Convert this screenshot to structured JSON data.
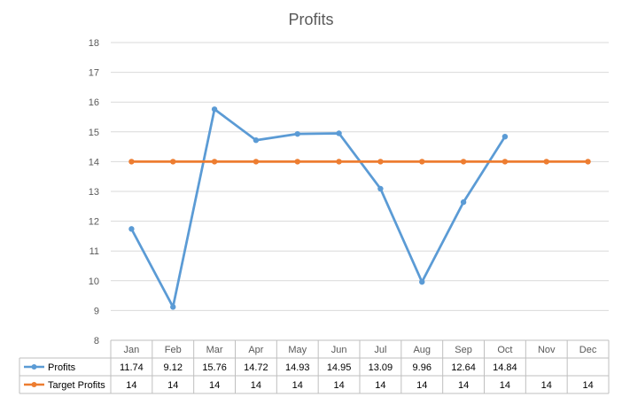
{
  "chart_data": {
    "type": "line",
    "title": "Profits",
    "categories": [
      "Jan",
      "Feb",
      "Mar",
      "Apr",
      "May",
      "Jun",
      "Jul",
      "Aug",
      "Sep",
      "Oct",
      "Nov",
      "Dec"
    ],
    "ylim": [
      8,
      18
    ],
    "yticks": [
      8,
      9,
      10,
      11,
      12,
      13,
      14,
      15,
      16,
      17,
      18
    ],
    "grid": true,
    "legend": "data-table",
    "series": [
      {
        "name": "Profits",
        "color": "#5B9BD5",
        "values": [
          11.74,
          9.12,
          15.76,
          14.72,
          14.93,
          14.95,
          13.09,
          9.96,
          12.64,
          14.84,
          null,
          null
        ],
        "labels": [
          "11.74",
          "9.12",
          "15.76",
          "14.72",
          "14.93",
          "14.95",
          "13.09",
          "9.96",
          "12.64",
          "14.84",
          "",
          ""
        ]
      },
      {
        "name": "Target Profits",
        "color": "#ED7D31",
        "values": [
          14,
          14,
          14,
          14,
          14,
          14,
          14,
          14,
          14,
          14,
          14,
          14
        ],
        "labels": [
          "14",
          "14",
          "14",
          "14",
          "14",
          "14",
          "14",
          "14",
          "14",
          "14",
          "14",
          "14"
        ]
      }
    ]
  }
}
